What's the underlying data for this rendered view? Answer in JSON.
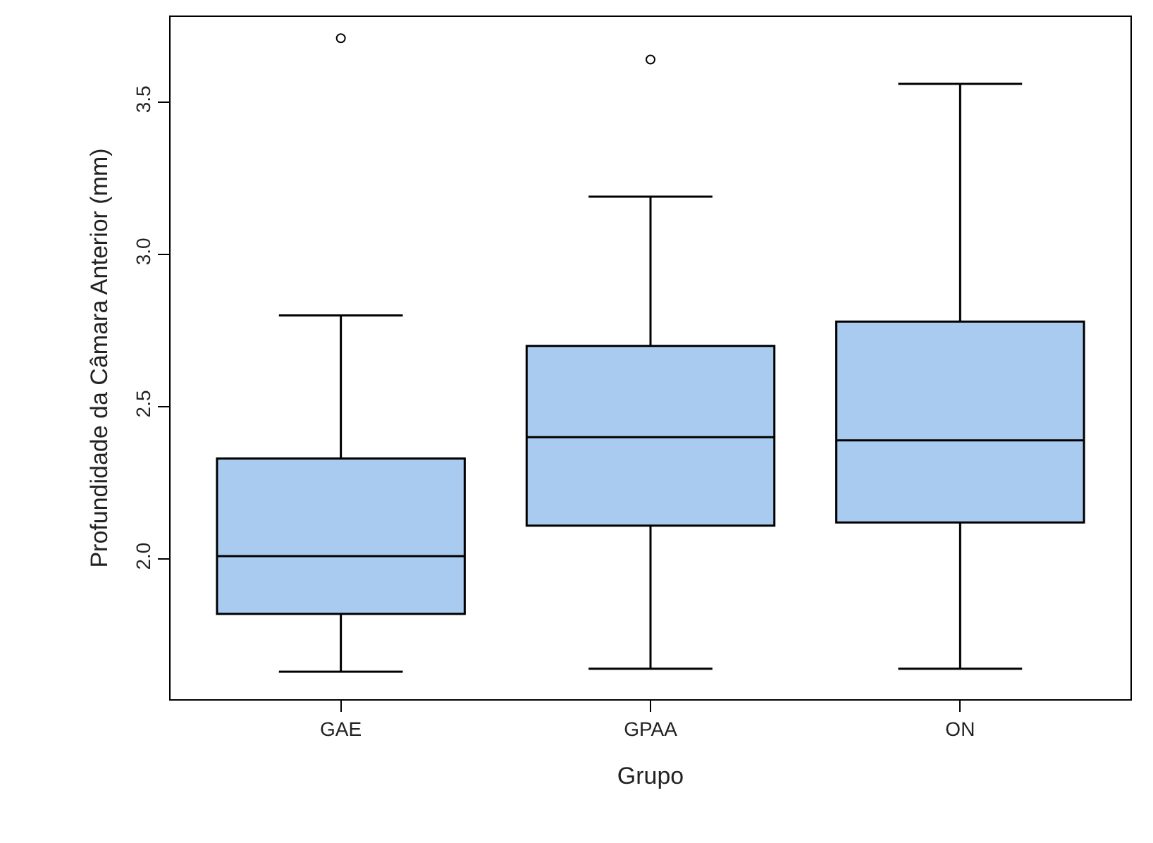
{
  "chart_data": {
    "type": "box",
    "xlabel": "Grupo",
    "ylabel": "Profundidade da Câmara Anterior (mm)",
    "categories": [
      "GAE",
      "GPAA",
      "ON"
    ],
    "series": [
      {
        "color": "#a8cbef",
        "boxes": [
          {
            "low": 1.63,
            "q1": 1.82,
            "median": 2.01,
            "q3": 2.33,
            "high": 2.8,
            "outliers": [
              3.71
            ]
          },
          {
            "low": 1.64,
            "q1": 2.11,
            "median": 2.4,
            "q3": 2.7,
            "high": 3.19,
            "outliers": [
              3.64
            ]
          },
          {
            "low": 1.64,
            "q1": 2.12,
            "median": 2.39,
            "q3": 2.78,
            "high": 3.56
          }
        ]
      }
    ],
    "ylim": [
      1.54,
      3.78
    ],
    "yticks": [
      {
        "value": 2,
        "label": "2.0"
      },
      2.5,
      {
        "value": 3,
        "label": "3.0"
      },
      3.5
    ],
    "marker": "circle"
  }
}
